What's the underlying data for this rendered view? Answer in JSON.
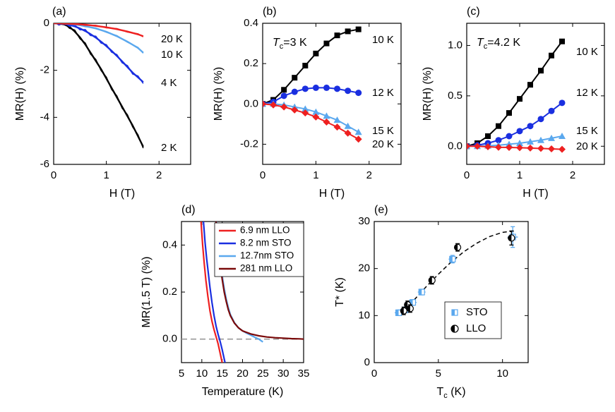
{
  "figure": {
    "colors": {
      "black": "#000000",
      "blue": "#1a2fe0",
      "lightblue": "#5aa8ee",
      "red": "#ee2020",
      "darkred": "#7a0a0a",
      "dash": "#999999"
    }
  },
  "chart_data": [
    {
      "id": "a",
      "panel_label": "(a)",
      "type": "line",
      "xlabel": "H (T)",
      "ylabel": "MR(H) (%)",
      "xlim": [
        0,
        2.6
      ],
      "ylim": [
        -6,
        0
      ],
      "xticks": [
        0,
        1,
        2
      ],
      "xtick_labels": [
        "0",
        "1",
        "2"
      ],
      "yticks": [
        -6,
        -4,
        -2,
        0
      ],
      "ytick_labels": [
        "-6",
        "-4",
        "-2",
        "0"
      ],
      "series": [
        {
          "name": "2 K",
          "label": "2 K",
          "color": "#000000",
          "x": [
            0,
            0.1,
            0.2,
            0.3,
            0.4,
            0.5,
            0.6,
            0.7,
            0.8,
            0.9,
            1.0,
            1.1,
            1.2,
            1.3,
            1.4,
            1.5,
            1.6,
            1.7
          ],
          "y": [
            0,
            -0.01,
            -0.05,
            -0.15,
            -0.35,
            -0.6,
            -0.9,
            -1.25,
            -1.6,
            -1.95,
            -2.35,
            -2.75,
            -3.15,
            -3.55,
            -3.95,
            -4.35,
            -4.8,
            -5.25
          ]
        },
        {
          "name": "4 K",
          "label": "4 K",
          "color": "#1a2fe0",
          "x": [
            0,
            0.1,
            0.2,
            0.3,
            0.4,
            0.5,
            0.6,
            0.7,
            0.8,
            0.9,
            1.0,
            1.1,
            1.2,
            1.3,
            1.4,
            1.5,
            1.6,
            1.7
          ],
          "y": [
            0,
            -0.01,
            -0.03,
            -0.07,
            -0.13,
            -0.22,
            -0.33,
            -0.46,
            -0.61,
            -0.78,
            -0.97,
            -1.17,
            -1.39,
            -1.62,
            -1.86,
            -2.1,
            -2.3,
            -2.5
          ]
        },
        {
          "name": "10 K",
          "label": "10 K",
          "color": "#5aa8ee",
          "x": [
            0,
            0.2,
            0.4,
            0.6,
            0.8,
            1.0,
            1.2,
            1.4,
            1.6,
            1.7
          ],
          "y": [
            0,
            -0.01,
            -0.05,
            -0.12,
            -0.22,
            -0.36,
            -0.55,
            -0.78,
            -1.05,
            -1.25
          ]
        },
        {
          "name": "20 K",
          "label": "20 K",
          "color": "#ee2020",
          "x": [
            0,
            0.2,
            0.4,
            0.6,
            0.8,
            1.0,
            1.2,
            1.4,
            1.6,
            1.7
          ],
          "y": [
            0,
            -0.01,
            -0.03,
            -0.06,
            -0.11,
            -0.17,
            -0.25,
            -0.35,
            -0.47,
            -0.55
          ]
        }
      ]
    },
    {
      "id": "b",
      "panel_label": "(b)",
      "type": "line",
      "annotation": {
        "main": "T",
        "sub": "c",
        "rest": "=3 K"
      },
      "xlabel": "H (T)",
      "ylabel": "MR(H) (%)",
      "xlim": [
        0,
        2.6
      ],
      "ylim": [
        -0.3,
        0.4
      ],
      "xticks": [
        0,
        1,
        2
      ],
      "xtick_labels": [
        "0",
        "1",
        "2"
      ],
      "yticks": [
        -0.2,
        0,
        0.2,
        0.4
      ],
      "ytick_labels": [
        "-0.2",
        "0.0",
        "0.2",
        "0.4"
      ],
      "series": [
        {
          "name": "10 K",
          "label": "10 K",
          "color": "#000000",
          "marker": "square",
          "x": [
            0,
            0.2,
            0.4,
            0.6,
            0.8,
            1.0,
            1.2,
            1.4,
            1.6,
            1.8
          ],
          "y": [
            0,
            0.02,
            0.07,
            0.13,
            0.19,
            0.25,
            0.3,
            0.34,
            0.36,
            0.37
          ]
        },
        {
          "name": "12 K",
          "label": "12 K",
          "color": "#1a2fe0",
          "marker": "circle",
          "x": [
            0,
            0.2,
            0.4,
            0.6,
            0.8,
            1.0,
            1.2,
            1.4,
            1.6,
            1.8
          ],
          "y": [
            0,
            0.01,
            0.04,
            0.06,
            0.075,
            0.08,
            0.08,
            0.075,
            0.065,
            0.055
          ]
        },
        {
          "name": "15 K",
          "label": "15 K",
          "color": "#5aa8ee",
          "marker": "triangle",
          "x": [
            0,
            0.2,
            0.4,
            0.6,
            0.8,
            1.0,
            1.2,
            1.4,
            1.6,
            1.8
          ],
          "y": [
            0,
            0.0,
            -0.005,
            -0.015,
            -0.025,
            -0.04,
            -0.06,
            -0.08,
            -0.11,
            -0.14
          ]
        },
        {
          "name": "20 K",
          "label": "20 K",
          "color": "#ee2020",
          "marker": "diamond",
          "x": [
            0,
            0.2,
            0.4,
            0.6,
            0.8,
            1.0,
            1.2,
            1.4,
            1.6,
            1.8
          ],
          "y": [
            0,
            -0.005,
            -0.015,
            -0.03,
            -0.045,
            -0.065,
            -0.09,
            -0.115,
            -0.145,
            -0.175
          ]
        }
      ]
    },
    {
      "id": "c",
      "panel_label": "(c)",
      "type": "line",
      "annotation": {
        "main": "T",
        "sub": "c",
        "rest": "=4.2 K"
      },
      "xlabel": "H (T)",
      "ylabel": "MR(H) (%)",
      "xlim": [
        0,
        2.6
      ],
      "ylim": [
        -0.18,
        1.22
      ],
      "xticks": [
        0,
        1,
        2
      ],
      "xtick_labels": [
        "0",
        "1",
        "2"
      ],
      "yticks": [
        0,
        0.5,
        1.0
      ],
      "ytick_labels": [
        "0.0",
        "0.5",
        "1.0"
      ],
      "series": [
        {
          "name": "10 K",
          "label": "10 K",
          "color": "#000000",
          "marker": "square",
          "x": [
            0,
            0.2,
            0.4,
            0.6,
            0.8,
            1.0,
            1.2,
            1.4,
            1.6,
            1.8
          ],
          "y": [
            0,
            0.03,
            0.1,
            0.2,
            0.33,
            0.47,
            0.61,
            0.75,
            0.9,
            1.04
          ]
        },
        {
          "name": "12 K",
          "label": "12 K",
          "color": "#1a2fe0",
          "marker": "circle",
          "x": [
            0,
            0.2,
            0.4,
            0.6,
            0.8,
            1.0,
            1.2,
            1.4,
            1.6,
            1.8
          ],
          "y": [
            0,
            0.01,
            0.03,
            0.06,
            0.1,
            0.15,
            0.2,
            0.27,
            0.35,
            0.43
          ]
        },
        {
          "name": "15 K",
          "label": "15 K",
          "color": "#5aa8ee",
          "marker": "triangle",
          "x": [
            0,
            0.2,
            0.4,
            0.6,
            0.8,
            1.0,
            1.2,
            1.4,
            1.6,
            1.8
          ],
          "y": [
            0,
            0.0,
            0.005,
            0.01,
            0.02,
            0.03,
            0.045,
            0.06,
            0.08,
            0.1
          ]
        },
        {
          "name": "20 K",
          "label": "20 K",
          "color": "#ee2020",
          "marker": "diamond",
          "x": [
            0,
            0.2,
            0.4,
            0.6,
            0.8,
            1.0,
            1.2,
            1.4,
            1.6,
            1.8
          ],
          "y": [
            0,
            0.0,
            -0.005,
            -0.01,
            -0.012,
            -0.015,
            -0.018,
            -0.022,
            -0.026,
            -0.03
          ]
        }
      ]
    },
    {
      "id": "d",
      "panel_label": "(d)",
      "type": "line",
      "xlabel": "Temperature (K)",
      "ylabel": "MR(1.5 T) (%)",
      "xlim": [
        5,
        35
      ],
      "ylim": [
        -0.1,
        0.5
      ],
      "xticks": [
        5,
        10,
        15,
        20,
        25,
        30,
        35
      ],
      "xtick_labels": [
        "5",
        "10",
        "15",
        "20",
        "25",
        "30",
        "35"
      ],
      "yticks": [
        0,
        0.2,
        0.4
      ],
      "ytick_labels": [
        "0.0",
        "0.2",
        "0.4"
      ],
      "zero_line": 0,
      "legend_position": "top-right",
      "series": [
        {
          "name": "6.9 nm LLO",
          "color": "#ee2020",
          "x": [
            9.8,
            10.2,
            10.6,
            11.0,
            11.5,
            12.0,
            12.5,
            13.0,
            13.5,
            14.0,
            14.5,
            15.0
          ],
          "y": [
            0.5,
            0.4,
            0.32,
            0.25,
            0.18,
            0.12,
            0.075,
            0.04,
            0.01,
            -0.02,
            -0.06,
            -0.1
          ]
        },
        {
          "name": "8.2 nm STO",
          "color": "#1a2fe0",
          "x": [
            10.4,
            10.8,
            11.2,
            11.6,
            12.0,
            12.5,
            13.0,
            13.5,
            14.0,
            14.5,
            15.0,
            15.7
          ],
          "y": [
            0.5,
            0.41,
            0.34,
            0.28,
            0.22,
            0.155,
            0.1,
            0.055,
            0.02,
            -0.01,
            -0.045,
            -0.1
          ]
        },
        {
          "name": "12.7nm STO",
          "color": "#5aa8ee",
          "x": [
            13.6,
            14.0,
            14.5,
            15.0,
            15.5,
            16.0,
            16.5,
            17.0,
            18.0,
            19.0,
            20.0,
            21.0,
            22.0,
            23.0,
            24.0,
            25.0
          ],
          "y": [
            0.5,
            0.42,
            0.34,
            0.27,
            0.215,
            0.17,
            0.135,
            0.105,
            0.07,
            0.048,
            0.035,
            0.025,
            0.017,
            0.008,
            0.0,
            -0.012
          ]
        },
        {
          "name": "281 nm LLO",
          "color": "#7a0a0a",
          "x": [
            13.5,
            14.0,
            14.5,
            15.0,
            15.5,
            16.0,
            16.5,
            17.0,
            18.0,
            19.0,
            20.0,
            22.0,
            24.0,
            26.0,
            28.0,
            30.0,
            32.0,
            34.0,
            35.0
          ],
          "y": [
            0.5,
            0.4,
            0.32,
            0.255,
            0.2,
            0.16,
            0.125,
            0.1,
            0.068,
            0.048,
            0.035,
            0.022,
            0.014,
            0.009,
            0.006,
            0.004,
            0.002,
            0.001,
            0.0
          ]
        }
      ]
    },
    {
      "id": "e",
      "panel_label": "(e)",
      "type": "scatter",
      "xlabel_main": "T",
      "xlabel_sub": "c",
      "xlabel_rest": " (K)",
      "ylabel": "T* (K)",
      "xlim": [
        0,
        12
      ],
      "ylim": [
        0,
        30
      ],
      "xticks": [
        0,
        5,
        10
      ],
      "xtick_labels": [
        "0",
        "5",
        "10"
      ],
      "yticks": [
        0,
        10,
        20,
        30
      ],
      "ytick_labels": [
        "0",
        "10",
        "20",
        "30"
      ],
      "fit": {
        "x": [
          2.0,
          3.0,
          4.0,
          5.0,
          6.0,
          7.0,
          8.0,
          9.0,
          10.0,
          11.0
        ],
        "y": [
          10.0,
          13.0,
          16.0,
          18.8,
          21.4,
          23.6,
          25.4,
          26.8,
          27.7,
          28.0
        ]
      },
      "legend_position": "bottom-right",
      "series": [
        {
          "name": "STO",
          "color": "#5aa8ee",
          "marker": "half-square",
          "x": [
            1.9,
            2.4,
            2.6,
            3.0,
            3.7,
            6.1,
            10.8
          ],
          "y": [
            10.6,
            11.2,
            11.8,
            12.8,
            15.0,
            22.0,
            26.7
          ],
          "xerr": [
            0.3,
            0.3,
            0.3,
            0.3,
            0.3,
            0.3,
            0.4
          ],
          "yerr": [
            0.6,
            0.6,
            0.6,
            0.6,
            0.6,
            0.8,
            2.2
          ]
        },
        {
          "name": "LLO",
          "color": "#000000",
          "marker": "half-circle",
          "x": [
            2.3,
            2.6,
            2.8,
            4.5,
            6.5,
            10.7
          ],
          "y": [
            11.0,
            12.3,
            11.5,
            17.5,
            24.5,
            26.5
          ],
          "xerr": [
            0.2,
            0.2,
            0.2,
            0.2,
            0.2,
            0.3
          ],
          "yerr": [
            0.8,
            0.8,
            0.8,
            0.8,
            0.8,
            1.5
          ]
        }
      ]
    }
  ]
}
